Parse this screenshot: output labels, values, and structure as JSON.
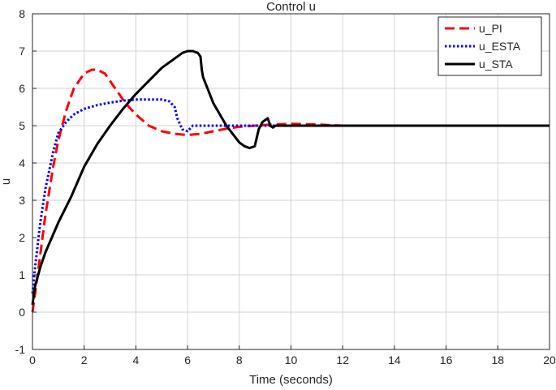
{
  "chart_data": {
    "type": "line",
    "title": "Control u",
    "xlabel": "Time (seconds)",
    "ylabel": "u",
    "xlim": [
      0,
      20
    ],
    "ylim": [
      -1,
      8
    ],
    "xticks": [
      0,
      2,
      4,
      6,
      8,
      10,
      12,
      14,
      16,
      18,
      20
    ],
    "yticks": [
      -1,
      0,
      1,
      2,
      3,
      4,
      5,
      6,
      7,
      8
    ],
    "grid": true,
    "legend_position": "top-right",
    "series": [
      {
        "name": "u_PI",
        "color": "#ff0000",
        "style": "dashed",
        "x": [
          0,
          0.2,
          0.5,
          0.8,
          1.0,
          1.3,
          1.6,
          2.0,
          2.3,
          2.5,
          2.8,
          3.2,
          3.6,
          4.0,
          4.5,
          5.0,
          5.5,
          6.0,
          6.5,
          7.0,
          7.5,
          8.0,
          9.0,
          10.0,
          11.0,
          12.0,
          14.0,
          16.0,
          18.0,
          20.0
        ],
        "y": [
          0,
          1.0,
          2.6,
          3.9,
          4.6,
          5.4,
          6.0,
          6.4,
          6.5,
          6.5,
          6.4,
          6.0,
          5.6,
          5.3,
          5.0,
          4.85,
          4.78,
          4.75,
          4.78,
          4.85,
          4.92,
          4.97,
          5.02,
          5.05,
          5.03,
          5.0,
          5.0,
          5.0,
          5.0,
          5.0
        ]
      },
      {
        "name": "u_ESTA",
        "color": "#0000ff",
        "style": "dotted",
        "x": [
          0,
          0.1,
          0.3,
          0.5,
          0.8,
          1.0,
          1.3,
          1.6,
          2.0,
          2.5,
          3.0,
          3.5,
          4.0,
          4.5,
          5.0,
          5.3,
          5.5,
          5.6,
          5.8,
          6.0,
          6.2,
          6.5,
          7.0,
          8.0,
          9.0,
          10.0,
          12.0,
          14.0,
          16.0,
          18.0,
          20.0
        ],
        "y": [
          0.5,
          1.2,
          2.4,
          3.3,
          4.3,
          4.8,
          5.1,
          5.3,
          5.45,
          5.55,
          5.62,
          5.67,
          5.7,
          5.7,
          5.7,
          5.65,
          5.5,
          5.2,
          4.9,
          4.85,
          5.0,
          5.0,
          5.0,
          5.0,
          5.0,
          5.0,
          5.0,
          5.0,
          5.0,
          5.0,
          5.0
        ]
      },
      {
        "name": "u_STA",
        "color": "#000000",
        "style": "solid",
        "x": [
          0,
          0.1,
          0.3,
          0.5,
          1.0,
          1.5,
          2.0,
          2.5,
          3.0,
          3.5,
          4.0,
          4.5,
          5.0,
          5.5,
          5.8,
          6.0,
          6.2,
          6.4,
          6.5,
          6.55,
          6.6,
          7.0,
          7.5,
          8.0,
          8.2,
          8.4,
          8.6,
          8.75,
          8.9,
          9.0,
          9.1,
          9.2,
          9.3,
          9.4,
          9.5,
          10.0,
          12.0,
          14.0,
          16.0,
          18.0,
          20.0
        ],
        "y": [
          0.2,
          0.7,
          1.2,
          1.6,
          2.4,
          3.1,
          3.9,
          4.5,
          5.0,
          5.45,
          5.85,
          6.2,
          6.55,
          6.8,
          6.95,
          7.0,
          7.0,
          6.95,
          6.85,
          6.5,
          6.3,
          5.6,
          5.0,
          4.55,
          4.45,
          4.4,
          4.45,
          4.9,
          5.1,
          5.15,
          5.2,
          5.0,
          4.95,
          5.0,
          5.0,
          5.0,
          5.0,
          5.0,
          5.0,
          5.0,
          5.0
        ]
      }
    ]
  }
}
